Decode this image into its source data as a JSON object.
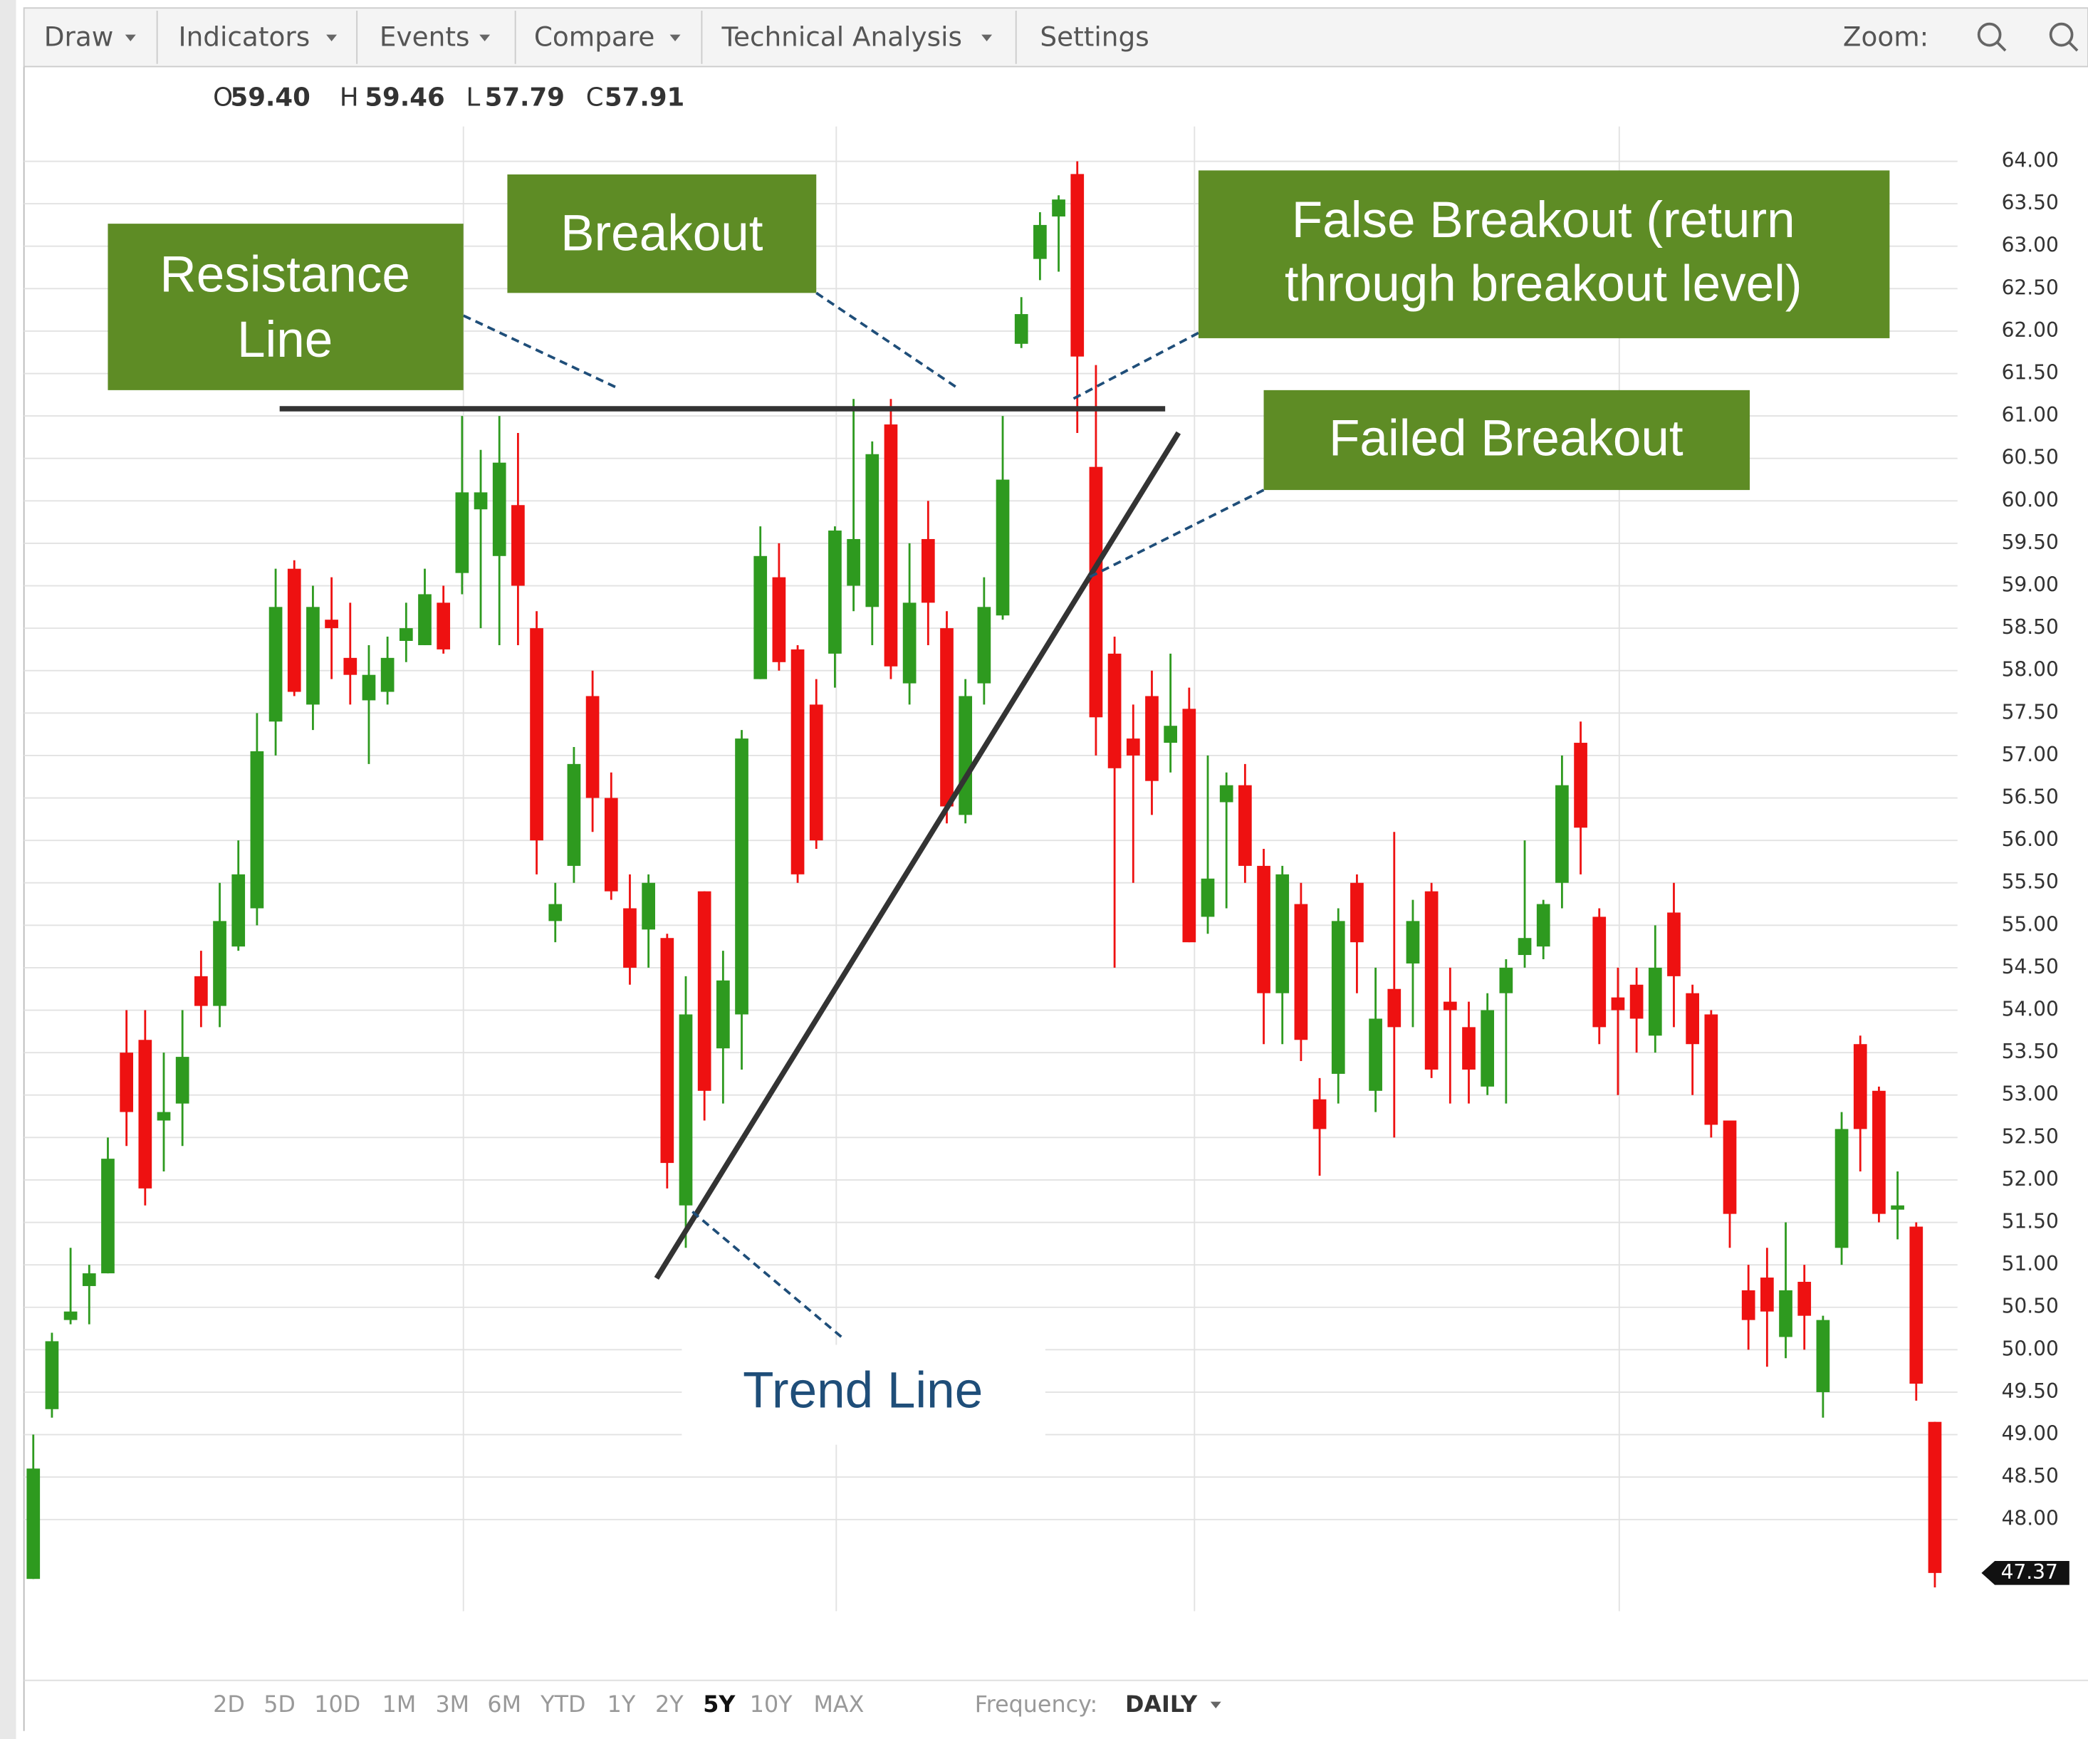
{
  "toolbar": {
    "menus": [
      "Draw",
      "Indicators",
      "Events",
      "Compare",
      "Technical Analysis"
    ],
    "settings": "Settings",
    "zoom": "Zoom:"
  },
  "quote": [
    {
      "label": "O",
      "value": "59.40"
    },
    {
      "label": "H",
      "value": "59.46"
    },
    {
      "label": "L",
      "value": "57.79"
    },
    {
      "label": "C",
      "value": "57.91"
    }
  ],
  "chart_data": {
    "type": "candlestick",
    "open": [
      47.3,
      49.3,
      50.35,
      50.75,
      50.9,
      53.5,
      53.65,
      52.7,
      52.9,
      54.4,
      54.05,
      54.75,
      55.2,
      57.4,
      59.2,
      57.6,
      58.6,
      58.15,
      57.65,
      57.75,
      58.35,
      58.3,
      58.8,
      59.15,
      59.9,
      59.35,
      59.95,
      58.5,
      55.05,
      55.7,
      57.7,
      56.5,
      55.2,
      54.95,
      54.85,
      51.7,
      55.4,
      53.55,
      53.95,
      57.9,
      59.1,
      58.25,
      57.6,
      58.2,
      59.0,
      58.75,
      60.9,
      57.85,
      59.55,
      58.5,
      56.3,
      57.85,
      58.65,
      61.85,
      62.85,
      63.35,
      63.85,
      60.4,
      58.2,
      57.2,
      57.7,
      57.15,
      57.55,
      55.1,
      56.45,
      56.65,
      55.7,
      54.2,
      55.25,
      52.95,
      53.25,
      55.5,
      53.05,
      54.25,
      54.55,
      55.4,
      54.1,
      53.8,
      53.1,
      54.2,
      54.65,
      54.75,
      55.5,
      57.15,
      55.1,
      54.15,
      54.3,
      53.7,
      55.15,
      54.2,
      53.95,
      52.7,
      50.7,
      50.85,
      50.15,
      50.8,
      49.5,
      51.2,
      53.6,
      53.05,
      51.65,
      51.45,
      49.15
    ],
    "high": [
      49.0,
      50.2,
      51.2,
      51.0,
      52.5,
      54.0,
      54.0,
      53.5,
      54.0,
      54.7,
      55.5,
      56.0,
      57.5,
      59.2,
      59.3,
      59.0,
      59.1,
      58.8,
      58.3,
      58.4,
      58.8,
      59.2,
      59.0,
      61.0,
      60.6,
      61.0,
      60.8,
      58.7,
      55.5,
      57.1,
      58.0,
      56.8,
      55.6,
      55.6,
      54.9,
      54.4,
      55.4,
      54.7,
      57.3,
      59.7,
      59.5,
      58.3,
      57.9,
      59.7,
      61.2,
      60.7,
      61.2,
      59.5,
      60.0,
      58.7,
      57.9,
      59.1,
      61.0,
      62.4,
      63.4,
      63.6,
      64.0,
      61.6,
      58.4,
      57.6,
      58.0,
      58.2,
      57.8,
      57.0,
      56.8,
      56.9,
      55.9,
      55.7,
      55.5,
      53.2,
      55.2,
      55.6,
      54.5,
      56.1,
      55.3,
      55.5,
      54.5,
      54.1,
      54.2,
      54.6,
      56.0,
      55.3,
      57.0,
      57.4,
      55.2,
      54.5,
      54.5,
      55.0,
      55.5,
      54.3,
      54.0,
      52.7,
      51.0,
      51.2,
      51.5,
      51.0,
      50.4,
      52.8,
      53.7,
      53.1,
      52.1,
      51.5,
      49.15
    ],
    "low": [
      47.3,
      49.2,
      50.3,
      50.3,
      50.9,
      52.4,
      51.7,
      52.1,
      52.4,
      53.8,
      53.8,
      54.7,
      55.0,
      57.0,
      57.7,
      57.3,
      57.9,
      57.6,
      56.9,
      57.6,
      58.1,
      58.3,
      58.2,
      58.9,
      58.5,
      58.3,
      58.3,
      55.6,
      54.8,
      55.5,
      56.1,
      55.3,
      54.3,
      54.5,
      51.9,
      51.2,
      52.7,
      52.9,
      53.3,
      57.9,
      58.0,
      55.5,
      55.9,
      57.8,
      58.7,
      58.3,
      57.9,
      57.6,
      58.3,
      56.2,
      56.2,
      57.6,
      58.6,
      61.8,
      62.6,
      62.7,
      60.8,
      57.0,
      54.5,
      55.5,
      56.3,
      56.8,
      54.8,
      54.9,
      55.2,
      55.5,
      53.6,
      53.6,
      53.4,
      52.05,
      52.9,
      54.2,
      52.8,
      52.5,
      53.8,
      53.2,
      52.9,
      52.9,
      53.0,
      52.9,
      54.5,
      54.6,
      55.2,
      55.6,
      53.6,
      53.0,
      53.5,
      53.5,
      53.8,
      53.0,
      52.5,
      51.2,
      50.0,
      49.8,
      49.9,
      50.0,
      49.2,
      51.0,
      52.1,
      51.5,
      51.3,
      49.4,
      47.2
    ],
    "close": [
      48.6,
      50.1,
      50.45,
      50.9,
      52.25,
      52.8,
      51.9,
      52.8,
      53.45,
      54.05,
      55.05,
      55.6,
      57.05,
      58.75,
      57.75,
      58.75,
      58.5,
      57.95,
      57.95,
      58.15,
      58.5,
      58.9,
      58.25,
      60.1,
      60.1,
      60.45,
      59.0,
      56.0,
      55.25,
      56.9,
      56.5,
      55.4,
      54.5,
      55.5,
      52.2,
      53.95,
      53.05,
      54.35,
      57.2,
      59.35,
      58.1,
      55.6,
      56.0,
      59.65,
      59.55,
      60.55,
      58.05,
      58.8,
      58.8,
      56.4,
      57.7,
      58.75,
      60.25,
      62.2,
      63.25,
      63.55,
      61.7,
      57.45,
      56.85,
      57.0,
      56.7,
      57.35,
      54.8,
      55.55,
      56.65,
      55.7,
      54.2,
      55.6,
      53.65,
      52.6,
      55.05,
      54.8,
      53.9,
      53.8,
      55.05,
      53.3,
      54.0,
      53.3,
      54.0,
      54.5,
      54.85,
      55.25,
      56.65,
      56.15,
      53.8,
      54.0,
      53.9,
      54.5,
      54.4,
      53.6,
      52.65,
      51.6,
      50.35,
      50.45,
      50.7,
      50.4,
      50.35,
      52.6,
      52.6,
      51.6,
      51.7,
      49.6,
      47.37
    ],
    "up_color": "#2e9a1f",
    "down_color": "#ee1111",
    "ylim": [
      46.92,
      64.41
    ],
    "yticks": [
      {
        "value": 64,
        "label": "64.00"
      },
      {
        "value": 63.5,
        "label": "63.50"
      },
      {
        "value": 63,
        "label": "63.00"
      },
      {
        "value": 62.5,
        "label": "62.50"
      },
      {
        "value": 62,
        "label": "62.00"
      },
      {
        "value": 61.5,
        "label": "61.50"
      },
      {
        "value": 61,
        "label": "61.00"
      },
      {
        "value": 60.5,
        "label": "60.50"
      },
      {
        "value": 60,
        "label": "60.00"
      },
      {
        "value": 59.5,
        "label": "59.50"
      },
      {
        "value": 59,
        "label": "59.00"
      },
      {
        "value": 58.5,
        "label": "58.50"
      },
      {
        "value": 58,
        "label": "58.00"
      },
      {
        "value": 57.5,
        "label": "57.50"
      },
      {
        "value": 57,
        "label": "57.00"
      },
      {
        "value": 56.5,
        "label": "56.50"
      },
      {
        "value": 56,
        "label": "56.00"
      },
      {
        "value": 55.5,
        "label": "55.50"
      },
      {
        "value": 55,
        "label": "55.00"
      },
      {
        "value": 54.5,
        "label": "54.50"
      },
      {
        "value": 54,
        "label": "54.00"
      },
      {
        "value": 53.5,
        "label": "53.50"
      },
      {
        "value": 53,
        "label": "53.00"
      },
      {
        "value": 52.5,
        "label": "52.50"
      },
      {
        "value": 52,
        "label": "52.00"
      },
      {
        "value": 51.5,
        "label": "51.50"
      },
      {
        "value": 51,
        "label": "51.00"
      },
      {
        "value": 50.5,
        "label": "50.50"
      },
      {
        "value": 50,
        "label": "50.00"
      },
      {
        "value": 49.5,
        "label": "49.50"
      },
      {
        "value": 49,
        "label": "49.00"
      },
      {
        "value": 48.5,
        "label": "48.50"
      },
      {
        "value": 48,
        "label": "48.00"
      }
    ],
    "grid": true,
    "last_price": {
      "value": 47.37,
      "label": "47.37"
    },
    "annotations": {
      "resistance": [
        "Resistance",
        "Line"
      ],
      "breakout": [
        "Breakout"
      ],
      "false_breakout": [
        "False Breakout (return",
        "through breakout level)"
      ],
      "failed_breakout": [
        "Failed Breakout"
      ],
      "trend": [
        "Trend Line"
      ]
    }
  },
  "ranges": [
    "2D",
    "5D",
    "10D",
    "1M",
    "3M",
    "6M",
    "YTD",
    "1Y",
    "2Y",
    "5Y",
    "10Y",
    "MAX"
  ],
  "selected_range": "5Y",
  "frequency": {
    "label": "Frequency:",
    "value": "DAILY"
  }
}
